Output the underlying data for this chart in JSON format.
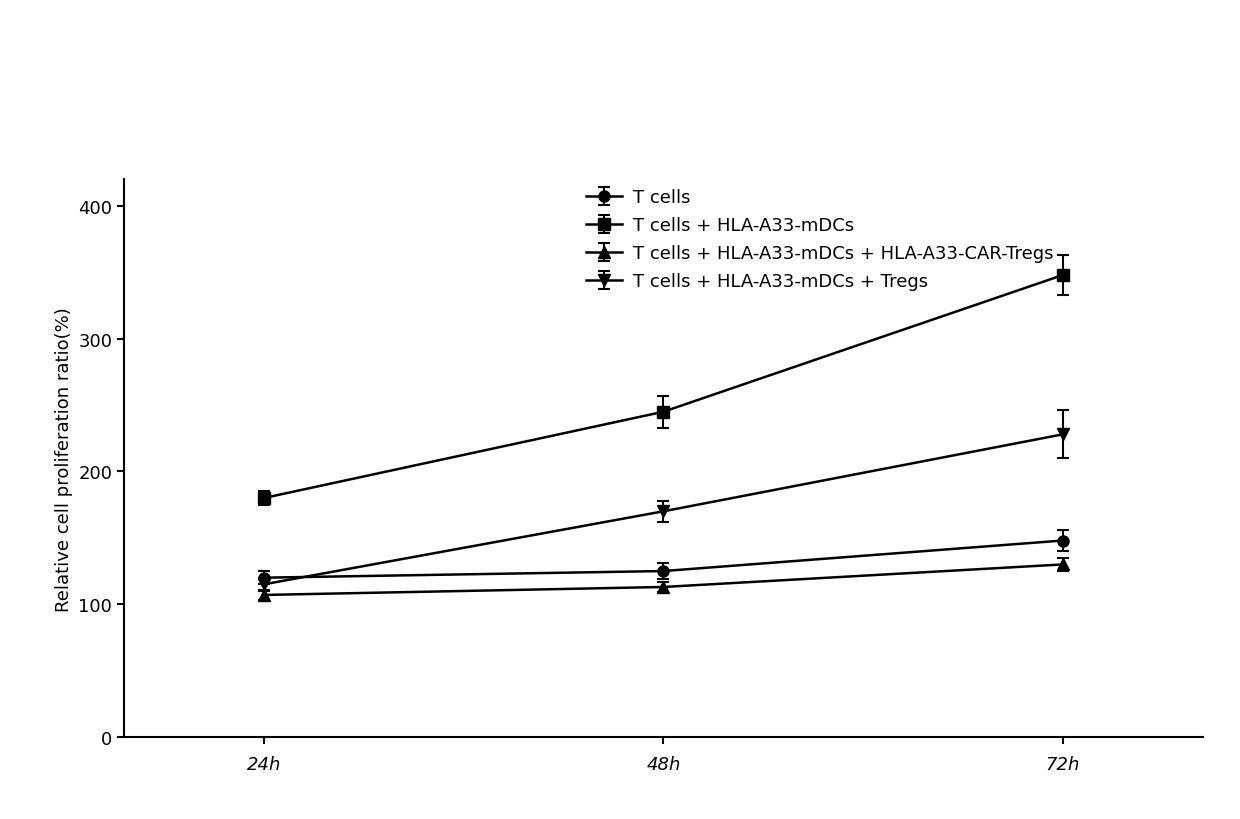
{
  "x_labels": [
    "24h",
    "48h",
    "72h"
  ],
  "x_values": [
    0,
    1,
    2
  ],
  "series": [
    {
      "label": "T cells",
      "y": [
        120,
        125,
        148
      ],
      "yerr": [
        5,
        6,
        8
      ],
      "marker": "o",
      "color": "#000000"
    },
    {
      "label": "T cells + HLA-A33-mDCs",
      "y": [
        180,
        245,
        348
      ],
      "yerr": [
        5,
        12,
        15
      ],
      "marker": "s",
      "color": "#000000"
    },
    {
      "label": "T cells + HLA-A33-mDCs + HLA-A33-CAR-Tregs",
      "y": [
        107,
        113,
        130
      ],
      "yerr": [
        4,
        4,
        5
      ],
      "marker": "^",
      "color": "#000000"
    },
    {
      "label": "T cells + HLA-A33-mDCs + Tregs",
      "y": [
        115,
        170,
        228
      ],
      "yerr": [
        5,
        8,
        18
      ],
      "marker": "v",
      "color": "#000000"
    }
  ],
  "ylabel": "Relative cell proliferation ratio(%)",
  "ylim": [
    0,
    420
  ],
  "yticks": [
    0,
    100,
    200,
    300,
    400
  ],
  "background_color": "#ffffff",
  "line_width": 1.8,
  "marker_size": 8,
  "capsize": 4,
  "legend_fontsize": 13,
  "ylabel_fontsize": 13,
  "tick_fontsize": 13
}
